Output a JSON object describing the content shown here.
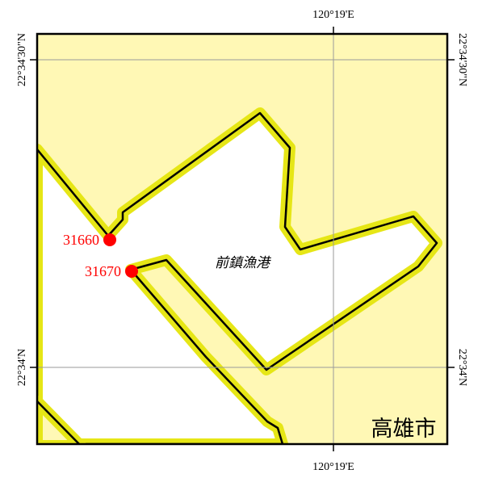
{
  "map": {
    "land_color": "#fff8b5",
    "water_color": "#ffffff",
    "shore_buffer_color": "#e6e616",
    "coastline_color": "#000000",
    "grid_color": "#9a9a9a",
    "lon_label_top": "120°19'E",
    "lon_label_bottom": "120°19'E",
    "lat_label_left_upper": "22°34'30\"N",
    "lat_label_left_lower": "22°34'N",
    "lat_label_right_upper": "22°34'30\"N",
    "lat_label_right_lower": "22°34'N",
    "harbor_name": "前鎮漁港",
    "city_name": "高雄市"
  },
  "stations": [
    {
      "id": "31660",
      "color": "#ff0000"
    },
    {
      "id": "31670",
      "color": "#ff0000"
    }
  ]
}
